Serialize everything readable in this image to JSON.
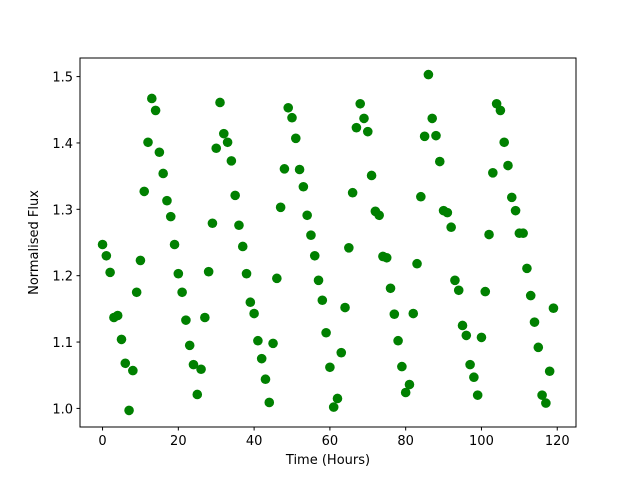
{
  "chart_data": {
    "type": "scatter",
    "xlabel": "Time (Hours)",
    "ylabel": "Normalised Flux",
    "color": "#008000",
    "x": [
      0,
      1,
      2,
      3,
      4,
      5,
      6,
      7,
      8,
      9,
      10,
      11,
      12,
      13,
      14,
      15,
      16,
      17,
      18,
      19,
      20,
      21,
      22,
      23,
      24,
      25,
      26,
      27,
      28,
      29,
      30,
      31,
      32,
      33,
      34,
      35,
      36,
      37,
      38,
      39,
      40,
      41,
      42,
      43,
      44,
      45,
      46,
      47,
      48,
      49,
      50,
      51,
      52,
      53,
      54,
      55,
      56,
      57,
      58,
      59,
      60,
      61,
      62,
      63,
      64,
      65,
      66,
      67,
      68,
      69,
      70,
      71,
      72,
      73,
      74,
      75,
      76,
      77,
      78,
      79,
      80,
      81,
      82,
      83,
      84,
      85,
      86,
      87,
      88,
      89,
      90,
      91,
      92,
      93,
      94,
      95,
      96,
      97,
      98,
      99,
      100,
      101,
      102,
      103,
      104,
      105,
      106,
      107,
      108,
      109,
      110,
      111,
      112,
      113,
      114,
      115,
      116,
      117,
      118,
      119
    ],
    "values": [
      1.247,
      1.23,
      1.205,
      1.137,
      1.14,
      1.104,
      1.068,
      0.997,
      1.057,
      1.175,
      1.223,
      1.327,
      1.401,
      1.467,
      1.449,
      1.386,
      1.354,
      1.313,
      1.289,
      1.247,
      1.203,
      1.175,
      1.133,
      1.095,
      1.066,
      1.021,
      1.059,
      1.137,
      1.206,
      1.279,
      1.392,
      1.461,
      1.414,
      1.401,
      1.373,
      1.321,
      1.276,
      1.244,
      1.203,
      1.16,
      1.143,
      1.102,
      1.075,
      1.044,
      1.009,
      1.098,
      1.196,
      1.303,
      1.361,
      1.453,
      1.438,
      1.407,
      1.36,
      1.334,
      1.291,
      1.261,
      1.23,
      1.193,
      1.163,
      1.114,
      1.062,
      1.002,
      1.015,
      1.084,
      1.152,
      1.242,
      1.325,
      1.423,
      1.459,
      1.437,
      1.417,
      1.351,
      1.297,
      1.291,
      1.229,
      1.227,
      1.181,
      1.142,
      1.102,
      1.063,
      1.024,
      1.036,
      1.143,
      1.218,
      1.319,
      1.41,
      1.503,
      1.437,
      1.411,
      1.372,
      1.298,
      1.295,
      1.273,
      1.193,
      1.178,
      1.125,
      1.11,
      1.066,
      1.047,
      1.02,
      1.107,
      1.176,
      1.262,
      1.355,
      1.459,
      1.449,
      1.401,
      1.366,
      1.318,
      1.298,
      1.264,
      1.264,
      1.211,
      1.17,
      1.13,
      1.092,
      1.02,
      1.008,
      1.056,
      1.151
    ],
    "xlim": [
      -5.95,
      124.95
    ],
    "xticks": [
      0,
      20,
      40,
      60,
      80,
      100,
      120
    ],
    "ylim": [
      0.972,
      1.528
    ],
    "yticks": [
      {
        "value": 1.0,
        "label": "1.0"
      },
      1.1,
      1.2,
      1.3,
      1.4,
      1.5
    ],
    "grid": false
  }
}
